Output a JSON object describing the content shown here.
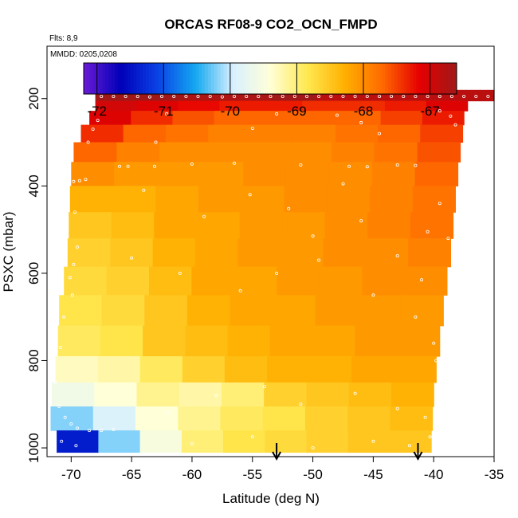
{
  "chart_data": {
    "type": "heatmap",
    "title": "ORCAS RF08-9 CO2_OCN_FMPD",
    "subtitle_flights": "Flts: 8,9",
    "subtitle_dates": "MMDD: 0205,0208",
    "xlabel": "Latitude (deg N)",
    "ylabel": "PSXC (mbar)",
    "xlim": [
      -72,
      -35
    ],
    "ylim": [
      1020,
      80
    ],
    "x_ticks": [
      -70,
      -65,
      -60,
      -55,
      -50,
      -45,
      -40,
      -35
    ],
    "x_tick_labels": [
      "-70",
      "-65",
      "-60",
      "-55",
      "-50",
      "-45",
      "-40",
      "-35"
    ],
    "y_ticks": [
      200,
      400,
      600,
      800,
      1000
    ],
    "y_tick_labels": [
      "200",
      "400",
      "600",
      "800",
      "1000"
    ],
    "colorbar": {
      "range": [
        -72.2,
        -66.6
      ],
      "ticks": [
        -72,
        -71,
        -70,
        -69,
        -68,
        -67
      ],
      "tick_labels": [
        "-72",
        "-71",
        "-70",
        "-69",
        "-68",
        "-67"
      ],
      "colors": [
        "#6a1bd6",
        "#0000b8",
        "#0a44e6",
        "#14a8f0",
        "#d8f0ff",
        "#ffffd8",
        "#ffe850",
        "#ffb000",
        "#ff6a00",
        "#e60000",
        "#a01818"
      ]
    },
    "arrows_latitude": [
      -53,
      -41.3
    ],
    "bands": [
      {
        "p_top": 180,
        "p_bot": 205,
        "lat_start": -68.0,
        "lat_end": -35.0,
        "values": [
          -66.6,
          -66.6,
          -66.7,
          -66.7,
          -66.6,
          -66.8,
          -66.8,
          -66.8,
          -66.8
        ]
      },
      {
        "p_top": 205,
        "p_bot": 228,
        "lat_start": -68.0,
        "lat_end": -37.2,
        "values": [
          -67.0,
          -67.1,
          -67.2,
          -67.3,
          -67.3,
          -67.4,
          -67.4,
          -67.3,
          -67.1
        ]
      },
      {
        "p_top": 228,
        "p_bot": 260,
        "lat_start": -68.5,
        "lat_end": -37.5,
        "values": [
          -67.1,
          -67.4,
          -67.6,
          -67.7,
          -67.7,
          -67.7,
          -67.7,
          -67.5,
          -67.3
        ]
      },
      {
        "p_top": 260,
        "p_bot": 300,
        "lat_start": -69.2,
        "lat_end": -37.6,
        "values": [
          -67.4,
          -67.7,
          -67.8,
          -67.9,
          -67.9,
          -67.9,
          -67.8,
          -67.7,
          -67.5
        ]
      },
      {
        "p_top": 300,
        "p_bot": 345,
        "lat_start": -69.8,
        "lat_end": -37.8,
        "values": [
          -67.7,
          -67.9,
          -68.0,
          -68.0,
          -68.0,
          -68.0,
          -67.9,
          -67.8,
          -67.6
        ]
      },
      {
        "p_top": 345,
        "p_bot": 400,
        "lat_start": -70.0,
        "lat_end": -38.0,
        "values": [
          -68.0,
          -68.1,
          -68.1,
          -68.1,
          -68.0,
          -68.0,
          -68.0,
          -67.9,
          -67.7
        ]
      },
      {
        "p_top": 400,
        "p_bot": 460,
        "lat_start": -70.1,
        "lat_end": -38.2,
        "values": [
          -68.3,
          -68.3,
          -68.2,
          -68.1,
          -68.1,
          -68.0,
          -68.0,
          -67.9,
          -67.8
        ]
      },
      {
        "p_top": 460,
        "p_bot": 520,
        "lat_start": -70.2,
        "lat_end": -38.4,
        "values": [
          -68.5,
          -68.4,
          -68.2,
          -68.2,
          -68.1,
          -68.1,
          -68.0,
          -67.9,
          -67.8
        ]
      },
      {
        "p_top": 520,
        "p_bot": 585,
        "lat_start": -70.3,
        "lat_end": -38.6,
        "values": [
          -68.6,
          -68.5,
          -68.3,
          -68.2,
          -68.1,
          -68.1,
          -68.0,
          -68.0,
          -67.9
        ]
      },
      {
        "p_top": 585,
        "p_bot": 650,
        "lat_start": -70.6,
        "lat_end": -38.9,
        "values": [
          -68.7,
          -68.6,
          -68.4,
          -68.2,
          -68.2,
          -68.1,
          -68.1,
          -68.0,
          -68.0
        ]
      },
      {
        "p_top": 650,
        "p_bot": 720,
        "lat_start": -71.0,
        "lat_end": -39.2,
        "values": [
          -68.8,
          -68.7,
          -68.5,
          -68.3,
          -68.2,
          -68.2,
          -68.1,
          -68.1,
          -68.1
        ]
      },
      {
        "p_top": 720,
        "p_bot": 790,
        "lat_start": -71.1,
        "lat_end": -39.5,
        "values": [
          -68.9,
          -68.8,
          -68.5,
          -68.4,
          -68.3,
          -68.2,
          -68.2,
          -68.1,
          -68.1
        ]
      },
      {
        "p_top": 790,
        "p_bot": 850,
        "lat_start": -71.3,
        "lat_end": -39.8,
        "values": [
          -69.3,
          -69.2,
          -68.9,
          -68.6,
          -68.4,
          -68.3,
          -68.3,
          -68.2,
          -68.2
        ]
      },
      {
        "p_top": 850,
        "p_bot": 905,
        "lat_start": -71.6,
        "lat_end": -40.0,
        "values": [
          -69.6,
          -69.4,
          -69.1,
          -69.2,
          -69.0,
          -68.6,
          -68.5,
          -68.4,
          -68.3
        ]
      },
      {
        "p_top": 905,
        "p_bot": 960,
        "lat_start": -71.7,
        "lat_end": -40.1,
        "values": [
          -70.2,
          -69.9,
          -69.4,
          -69.1,
          -68.9,
          -68.8,
          -68.6,
          -68.5,
          -68.4
        ]
      },
      {
        "p_top": 960,
        "p_bot": 1010,
        "lat_start": -71.2,
        "lat_end": -40.2,
        "values": [
          -71.4,
          -70.2,
          -69.5,
          -69.0,
          -68.8,
          -68.7,
          -68.6,
          -68.5,
          -68.5
        ]
      }
    ],
    "track_points": [
      [
        -67.5,
        195
      ],
      [
        -66.5,
        195
      ],
      [
        -65.5,
        195
      ],
      [
        -64.5,
        195
      ],
      [
        -63.5,
        196
      ],
      [
        -62.5,
        195
      ],
      [
        -61.5,
        195
      ],
      [
        -60.5,
        195
      ],
      [
        -59.5,
        195
      ],
      [
        -58.5,
        195
      ],
      [
        -57.5,
        196
      ],
      [
        -56.5,
        195
      ],
      [
        -55.5,
        195
      ],
      [
        -54.5,
        195
      ],
      [
        -53.5,
        195
      ],
      [
        -52.5,
        195
      ],
      [
        -51.5,
        195
      ],
      [
        -50.5,
        195
      ],
      [
        -49.5,
        195
      ],
      [
        -48.5,
        195
      ],
      [
        -47.5,
        195
      ],
      [
        -46.5,
        195
      ],
      [
        -45.5,
        195
      ],
      [
        -44.5,
        195
      ],
      [
        -43.5,
        195
      ],
      [
        -42.5,
        195
      ],
      [
        -41.5,
        195
      ],
      [
        -40.5,
        195
      ],
      [
        -39.5,
        195
      ],
      [
        -38.5,
        195
      ],
      [
        -37.5,
        195
      ],
      [
        -36.5,
        195
      ],
      [
        -35.5,
        195
      ],
      [
        -66.0,
        355
      ],
      [
        -65.3,
        355
      ],
      [
        -63.1,
        355
      ],
      [
        -60.0,
        350
      ],
      [
        -56.5,
        348
      ],
      [
        -51.0,
        352
      ],
      [
        -47.0,
        355
      ],
      [
        -45.5,
        356
      ],
      [
        -43.0,
        352
      ],
      [
        -41.5,
        353
      ],
      [
        -69.8,
        390
      ],
      [
        -69.3,
        388
      ],
      [
        -68.8,
        385
      ],
      [
        -67.8,
        250
      ],
      [
        -68.2,
        270
      ],
      [
        -68.6,
        300
      ],
      [
        -63.0,
        300
      ],
      [
        -62.1,
        235
      ],
      [
        -55.0,
        268
      ],
      [
        -53.0,
        235
      ],
      [
        -48.0,
        238
      ],
      [
        -46.0,
        255
      ],
      [
        -44.5,
        280
      ],
      [
        -39.5,
        228
      ],
      [
        -38.6,
        240
      ],
      [
        -38.2,
        260
      ],
      [
        -64.0,
        410
      ],
      [
        -59.0,
        470
      ],
      [
        -55.2,
        420
      ],
      [
        -52.0,
        452
      ],
      [
        -50.0,
        515
      ],
      [
        -47.5,
        395
      ],
      [
        -46.0,
        480
      ],
      [
        -43.0,
        560
      ],
      [
        -40.5,
        505
      ],
      [
        -39.5,
        440
      ],
      [
        -38.8,
        520
      ],
      [
        -41.0,
        615
      ],
      [
        -69.7,
        460
      ],
      [
        -69.5,
        540
      ],
      [
        -69.8,
        580
      ],
      [
        -70.1,
        610
      ],
      [
        -69.9,
        650
      ],
      [
        -70.6,
        700
      ],
      [
        -70.9,
        770
      ],
      [
        -65.0,
        565
      ],
      [
        -61.0,
        600
      ],
      [
        -56.0,
        640
      ],
      [
        -53.0,
        600
      ],
      [
        -49.5,
        570
      ],
      [
        -45.0,
        650
      ],
      [
        -41.5,
        700
      ],
      [
        -40.0,
        760
      ],
      [
        -39.8,
        800
      ],
      [
        -71.3,
        850
      ],
      [
        -71.0,
        905
      ],
      [
        -70.5,
        930
      ],
      [
        -70.0,
        945
      ],
      [
        -69.5,
        955
      ],
      [
        -68.5,
        960
      ],
      [
        -67.5,
        960
      ],
      [
        -66.5,
        958
      ],
      [
        -62.0,
        920
      ],
      [
        -58.0,
        880
      ],
      [
        -54.0,
        860
      ],
      [
        -51.0,
        900
      ],
      [
        -46.5,
        875
      ],
      [
        -43.0,
        910
      ],
      [
        -40.7,
        930
      ],
      [
        -40.3,
        975
      ],
      [
        -70.8,
        985
      ],
      [
        -69.6,
        995
      ],
      [
        -60.0,
        990
      ],
      [
        -55.0,
        975
      ],
      [
        -50.0,
        1000
      ],
      [
        -45.0,
        985
      ],
      [
        -42.0,
        995
      ]
    ]
  }
}
